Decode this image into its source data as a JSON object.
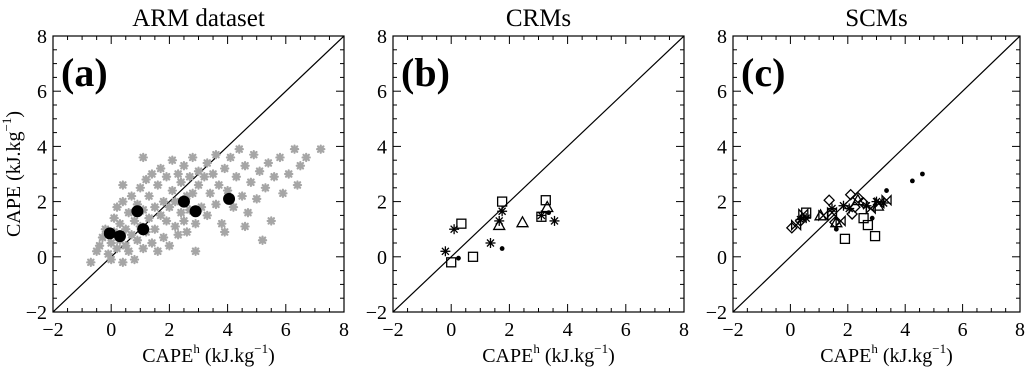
{
  "chart_data": [
    {
      "type": "scatter",
      "title": "ARM dataset",
      "panel_label": "(a)",
      "xlabel": "CAPE",
      "xlabel_sup": "h",
      "xunit": "(kJ.kg",
      "xunit_sup": "-1",
      "xunit_close": ")",
      "ylabel": "CAPE (kJ.kg",
      "ylabel_sup": "-1",
      "ylabel_close": ")",
      "xlim": [
        -2,
        8
      ],
      "ylim": [
        -2,
        8
      ],
      "xticks": [
        "-2",
        "0",
        "2",
        "4",
        "6",
        "8"
      ],
      "yticks": [
        "-2",
        "0",
        "2",
        "4",
        "6",
        "8"
      ],
      "one_to_one_line": true,
      "series": [
        {
          "marker": "star",
          "color": "#a6a6a6",
          "points": [
            [
              -0.7,
              -0.2
            ],
            [
              -0.5,
              0.2
            ],
            [
              -0.4,
              0.4
            ],
            [
              -0.3,
              0.7
            ],
            [
              -0.2,
              1.0
            ],
            [
              -0.1,
              0.1
            ],
            [
              0.0,
              -0.1
            ],
            [
              0.0,
              0.5
            ],
            [
              0.1,
              0.9
            ],
            [
              0.1,
              1.4
            ],
            [
              0.2,
              0.3
            ],
            [
              0.2,
              1.8
            ],
            [
              0.3,
              0.6
            ],
            [
              0.3,
              1.2
            ],
            [
              0.4,
              -0.2
            ],
            [
              0.4,
              2.0
            ],
            [
              0.5,
              0.4
            ],
            [
              0.5,
              1.0
            ],
            [
              0.6,
              1.6
            ],
            [
              0.6,
              0.2
            ],
            [
              0.7,
              2.2
            ],
            [
              0.7,
              0.8
            ],
            [
              0.8,
              1.3
            ],
            [
              0.8,
              -0.1
            ],
            [
              0.9,
              1.9
            ],
            [
              0.9,
              0.6
            ],
            [
              1.0,
              2.5
            ],
            [
              1.0,
              1.1
            ],
            [
              1.1,
              0.3
            ],
            [
              1.1,
              1.7
            ],
            [
              1.2,
              2.8
            ],
            [
              1.2,
              0.9
            ],
            [
              1.3,
              1.4
            ],
            [
              1.3,
              2.2
            ],
            [
              1.4,
              0.5
            ],
            [
              1.4,
              3.0
            ],
            [
              1.5,
              1.8
            ],
            [
              1.5,
              1.0
            ],
            [
              1.6,
              2.6
            ],
            [
              1.6,
              0.2
            ],
            [
              1.7,
              1.5
            ],
            [
              1.7,
              3.2
            ],
            [
              1.8,
              2.0
            ],
            [
              1.8,
              0.7
            ],
            [
              1.9,
              2.9
            ],
            [
              1.9,
              1.3
            ],
            [
              2.0,
              1.8
            ],
            [
              2.0,
              0.4
            ],
            [
              2.1,
              2.4
            ],
            [
              2.1,
              3.5
            ],
            [
              2.2,
              1.1
            ],
            [
              2.2,
              2.0
            ],
            [
              2.3,
              3.0
            ],
            [
              2.3,
              0.8
            ],
            [
              2.4,
              1.6
            ],
            [
              2.4,
              2.7
            ],
            [
              2.5,
              3.3
            ],
            [
              2.5,
              1.3
            ],
            [
              2.6,
              2.2
            ],
            [
              2.6,
              0.9
            ],
            [
              2.7,
              2.9
            ],
            [
              2.7,
              1.7
            ],
            [
              2.8,
              3.6
            ],
            [
              2.8,
              2.3
            ],
            [
              2.9,
              1.2
            ],
            [
              3.0,
              2.6
            ],
            [
              3.0,
              3.1
            ],
            [
              3.1,
              1.8
            ],
            [
              3.2,
              2.9
            ],
            [
              3.3,
              1.5
            ],
            [
              3.3,
              3.4
            ],
            [
              3.4,
              2.3
            ],
            [
              3.5,
              3.0
            ],
            [
              3.6,
              1.9
            ],
            [
              3.6,
              3.7
            ],
            [
              3.7,
              2.6
            ],
            [
              3.8,
              1.2
            ],
            [
              3.9,
              3.2
            ],
            [
              4.0,
              2.4
            ],
            [
              4.1,
              3.6
            ],
            [
              4.2,
              1.8
            ],
            [
              4.3,
              2.9
            ],
            [
              4.4,
              3.9
            ],
            [
              4.5,
              2.2
            ],
            [
              4.6,
              3.3
            ],
            [
              4.7,
              1.6
            ],
            [
              4.8,
              2.7
            ],
            [
              4.9,
              3.7
            ],
            [
              5.0,
              2.1
            ],
            [
              5.1,
              3.1
            ],
            [
              5.2,
              0.6
            ],
            [
              5.3,
              2.5
            ],
            [
              5.4,
              3.4
            ],
            [
              5.5,
              1.3
            ],
            [
              5.6,
              2.9
            ],
            [
              5.8,
              3.6
            ],
            [
              5.9,
              2.3
            ],
            [
              6.1,
              3.0
            ],
            [
              6.3,
              3.9
            ],
            [
              6.4,
              2.6
            ],
            [
              6.5,
              3.3
            ],
            [
              6.7,
              3.6
            ],
            [
              7.2,
              3.9
            ],
            [
              3.9,
              0.9
            ],
            [
              4.6,
              1.1
            ],
            [
              2.9,
              0.2
            ],
            [
              1.1,
              3.6
            ],
            [
              0.4,
              2.6
            ]
          ]
        },
        {
          "marker": "dot",
          "color": "#000000",
          "points": [
            [
              -0.05,
              0.85
            ],
            [
              0.3,
              0.75
            ],
            [
              0.9,
              1.65
            ],
            [
              1.1,
              1.0
            ],
            [
              2.5,
              2.0
            ],
            [
              2.9,
              1.65
            ],
            [
              4.05,
              2.1
            ]
          ]
        }
      ]
    },
    {
      "type": "scatter",
      "title": "CRMs",
      "panel_label": "(b)",
      "xlabel": "CAPE",
      "xlabel_sup": "h",
      "xunit": "(kJ.kg",
      "xunit_sup": "-1",
      "xunit_close": ")",
      "xlim": [
        -2,
        8
      ],
      "ylim": [
        -2,
        8
      ],
      "xticks": [
        "-2",
        "0",
        "2",
        "4",
        "6",
        "8"
      ],
      "yticks": [
        "-2",
        "0",
        "2",
        "4",
        "6",
        "8"
      ],
      "one_to_one_line": true,
      "series": [
        {
          "marker": "asterisk",
          "points": [
            [
              -0.2,
              0.2
            ],
            [
              0.1,
              1.0
            ],
            [
              1.35,
              0.5
            ],
            [
              1.65,
              1.3
            ],
            [
              1.75,
              1.65
            ],
            [
              3.1,
              1.5
            ],
            [
              3.55,
              1.3
            ]
          ]
        },
        {
          "marker": "square",
          "points": [
            [
              0.0,
              -0.2
            ],
            [
              0.35,
              1.2
            ],
            [
              0.75,
              0.0
            ],
            [
              1.75,
              2.0
            ],
            [
              3.1,
              1.45
            ],
            [
              3.25,
              2.05
            ]
          ]
        },
        {
          "marker": "triangle",
          "points": [
            [
              2.45,
              1.25
            ],
            [
              3.3,
              1.8
            ],
            [
              1.65,
              1.15
            ]
          ]
        },
        {
          "marker": "small-dot",
          "points": [
            [
              0.25,
              -0.05
            ],
            [
              1.75,
              0.3
            ],
            [
              3.35,
              1.6
            ]
          ]
        }
      ]
    },
    {
      "type": "scatter",
      "title": "SCMs",
      "panel_label": "(c)",
      "xlabel": "CAPE",
      "xlabel_sup": "h",
      "xunit": "(kJ.kg",
      "xunit_sup": "-1",
      "xunit_close": ")",
      "xlim": [
        -2,
        8
      ],
      "ylim": [
        -2,
        8
      ],
      "xticks": [
        "-2",
        "0",
        "2",
        "4",
        "6",
        "8"
      ],
      "yticks": [
        "-2",
        "0",
        "2",
        "4",
        "6",
        "8"
      ],
      "one_to_one_line": true,
      "series": [
        {
          "marker": "diamond",
          "points": [
            [
              0.05,
              1.05
            ],
            [
              0.35,
              1.3
            ],
            [
              1.35,
              2.05
            ],
            [
              1.55,
              1.25
            ],
            [
              2.1,
              2.25
            ],
            [
              2.15,
              1.55
            ],
            [
              2.35,
              2.15
            ],
            [
              2.55,
              1.95
            ],
            [
              2.25,
              1.8
            ]
          ]
        },
        {
          "marker": "bowtie",
          "points": [
            [
              0.2,
              1.15
            ],
            [
              0.45,
              1.55
            ],
            [
              1.15,
              1.5
            ],
            [
              1.45,
              1.6
            ],
            [
              1.75,
              1.3
            ],
            [
              2.8,
              1.75
            ],
            [
              3.1,
              1.95
            ],
            [
              3.35,
              2.05
            ]
          ]
        },
        {
          "marker": "asterisk",
          "points": [
            [
              0.35,
              1.35
            ],
            [
              0.55,
              1.4
            ],
            [
              1.45,
              1.75
            ],
            [
              1.85,
              1.85
            ],
            [
              2.05,
              1.75
            ],
            [
              2.65,
              1.85
            ],
            [
              3.0,
              2.0
            ],
            [
              3.25,
              1.95
            ]
          ]
        },
        {
          "marker": "square",
          "points": [
            [
              0.55,
              1.6
            ],
            [
              1.9,
              0.65
            ],
            [
              2.7,
              1.15
            ],
            [
              2.95,
              0.75
            ],
            [
              2.55,
              1.4
            ]
          ]
        },
        {
          "marker": "triangle",
          "points": [
            [
              1.05,
              1.5
            ],
            [
              1.6,
              1.25
            ],
            [
              2.35,
              2.05
            ],
            [
              3.05,
              1.85
            ]
          ]
        },
        {
          "marker": "small-dot",
          "points": [
            [
              1.6,
              1.0
            ],
            [
              2.85,
              1.4
            ],
            [
              3.35,
              2.4
            ],
            [
              4.25,
              2.75
            ],
            [
              4.6,
              3.0
            ]
          ]
        }
      ]
    }
  ]
}
